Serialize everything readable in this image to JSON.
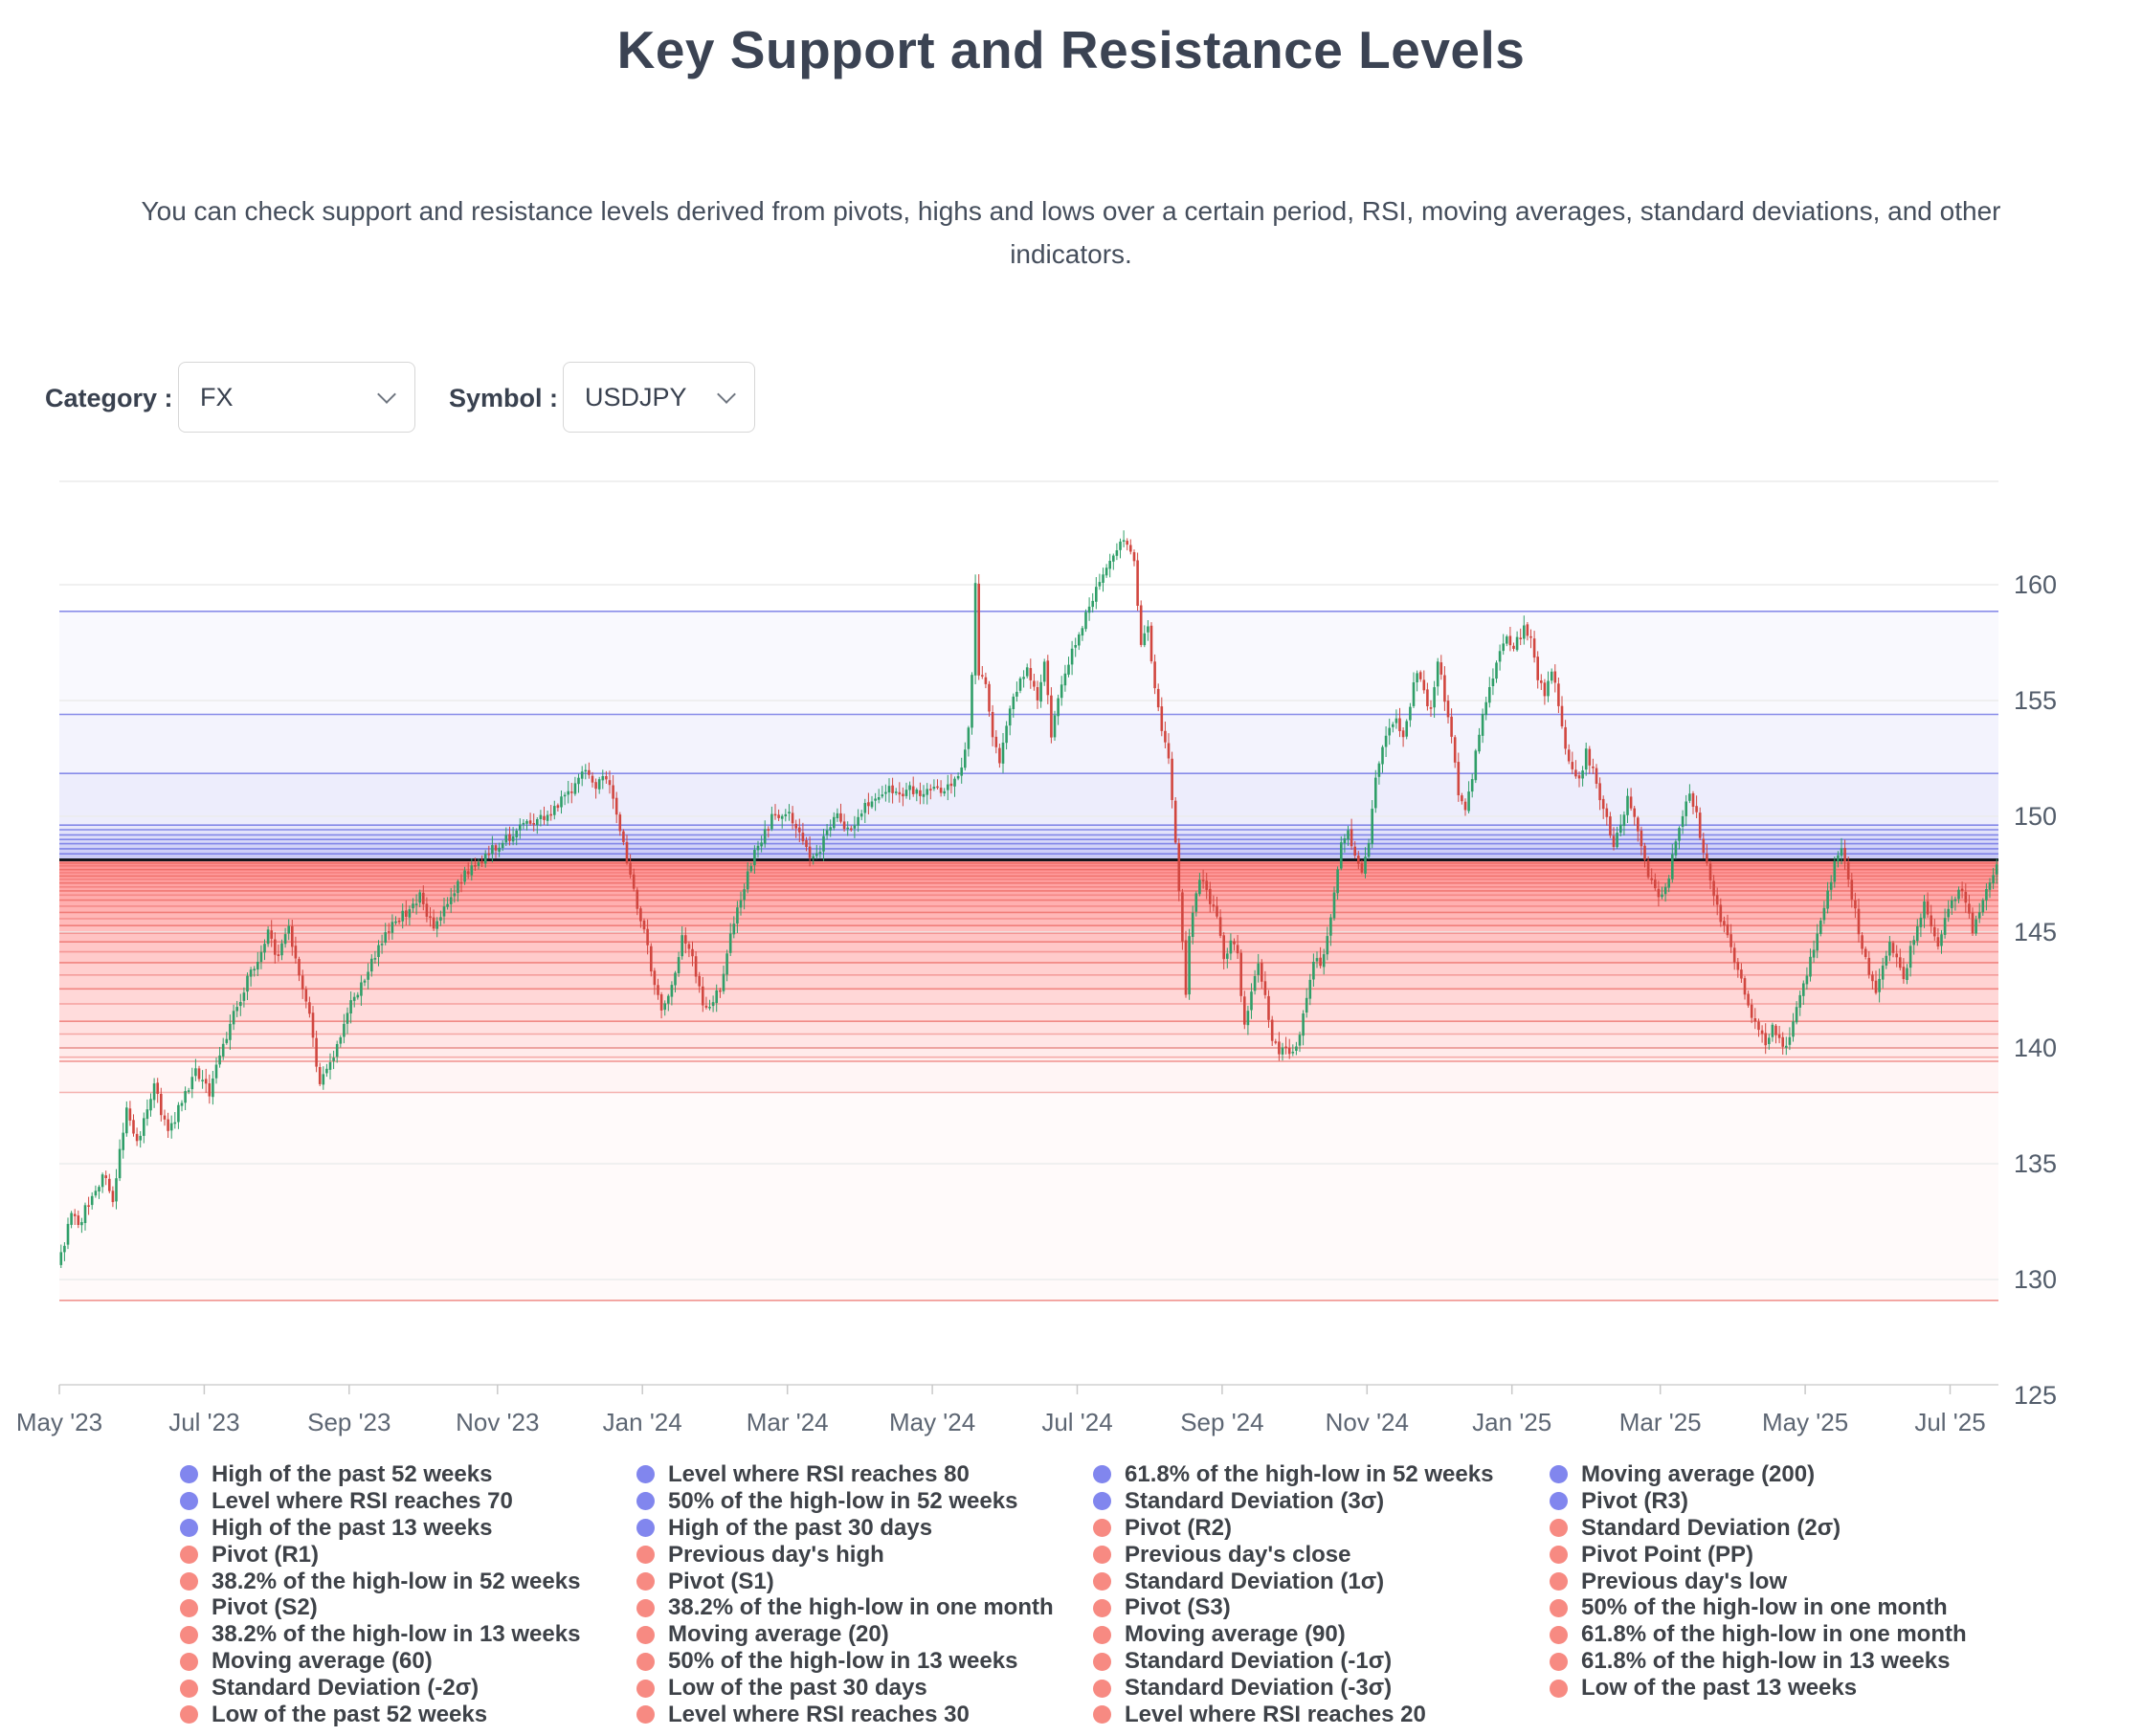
{
  "page": {
    "title": "Key Support and Resistance Levels",
    "description_lines": [
      "You can check support and resistance levels derived from pivots, highs and lows over a certain period, RSI, moving averages, standard deviations, and other",
      "indicators."
    ]
  },
  "controls": {
    "category_label": "Category :",
    "category_value": "FX",
    "symbol_label": "Symbol :",
    "symbol_value": "USDJPY",
    "dropdown_icon": "chevron-down-icon"
  },
  "chart_data": {
    "type": "candlestick",
    "symbol": "USDJPY",
    "x_axis": {
      "labels": [
        "May '23",
        "Jul '23",
        "Sep '23",
        "Nov '23",
        "Jan '24",
        "Mar '24",
        "May '24",
        "Jul '24",
        "Sep '24",
        "Nov '24",
        "Jan '25",
        "Mar '25",
        "May '25",
        "Jul '25"
      ],
      "tick_days": [
        0,
        42,
        84,
        127,
        169,
        211,
        253,
        295,
        337,
        379,
        421,
        464,
        506,
        548
      ],
      "total_days": 562
    },
    "y_axis": {
      "ticks": [
        160,
        155,
        150,
        145,
        140,
        135,
        130,
        125
      ],
      "range_top": 164.6,
      "range_bottom": 125.45,
      "grid": true,
      "position": "right"
    },
    "current_price": 148.12,
    "colors": {
      "up": "#2f9e68",
      "down": "#d1463f",
      "resistance_dot": "#8186ee",
      "support_dot": "#f78a82",
      "resistance_line": "#6c70e4",
      "support_line": "#e85c56",
      "band_blue": "#6e73eb",
      "band_red": "#f04646",
      "current_line": "#14161c",
      "grid_line": "#ececec",
      "axis_line": "#d0d0d0",
      "tick_text": "#5d6673"
    },
    "legend_layout": {
      "columns": 4,
      "order": "row-major"
    },
    "levels": [
      {
        "label": "High of the past 52 weeks",
        "price": 158.85,
        "side": "resistance"
      },
      {
        "label": "Level where RSI reaches 80",
        "price": 154.4,
        "side": "resistance"
      },
      {
        "label": "61.8% of the high-low in 52 weeks",
        "price": 151.85,
        "side": "resistance"
      },
      {
        "label": "Moving average (200)",
        "price": 149.62,
        "side": "resistance"
      },
      {
        "label": "Level where RSI reaches 70",
        "price": 149.42,
        "side": "resistance"
      },
      {
        "label": "50% of the high-low in 52 weeks",
        "price": 149.2,
        "side": "resistance"
      },
      {
        "label": "Standard Deviation (3σ)",
        "price": 149.0,
        "side": "resistance"
      },
      {
        "label": "Pivot (R3)",
        "price": 148.82,
        "side": "resistance"
      },
      {
        "label": "High of the past 13 weeks",
        "price": 148.6,
        "side": "resistance"
      },
      {
        "label": "High of the past 30 days",
        "price": 148.38,
        "side": "resistance"
      },
      {
        "label": "Pivot (R2)",
        "price": 147.98,
        "side": "support"
      },
      {
        "label": "Standard Deviation (2σ)",
        "price": 147.86,
        "side": "support"
      },
      {
        "label": "Pivot (R1)",
        "price": 147.7,
        "side": "support"
      },
      {
        "label": "Previous day's high",
        "price": 147.56,
        "side": "support"
      },
      {
        "label": "Previous day's close",
        "price": 147.42,
        "side": "support"
      },
      {
        "label": "Pivot Point (PP)",
        "price": 147.28,
        "side": "support"
      },
      {
        "label": "38.2% of the high-low in 52 weeks",
        "price": 147.12,
        "side": "support"
      },
      {
        "label": "Pivot (S1)",
        "price": 146.95,
        "side": "support"
      },
      {
        "label": "Standard Deviation (1σ)",
        "price": 146.78,
        "side": "support"
      },
      {
        "label": "Previous day's low",
        "price": 146.6,
        "side": "support"
      },
      {
        "label": "Pivot (S2)",
        "price": 146.38,
        "side": "support"
      },
      {
        "label": "38.2% of the high-low in one month",
        "price": 146.12,
        "side": "support"
      },
      {
        "label": "Pivot (S3)",
        "price": 145.85,
        "side": "support"
      },
      {
        "label": "50% of the high-low in one month",
        "price": 145.58,
        "side": "support"
      },
      {
        "label": "38.2% of the high-low in 13 weeks",
        "price": 145.28,
        "side": "support"
      },
      {
        "label": "Moving average (20)",
        "price": 144.95,
        "side": "support"
      },
      {
        "label": "Moving average (90)",
        "price": 144.58,
        "side": "support"
      },
      {
        "label": "61.8% of the high-low in one month",
        "price": 144.15,
        "side": "support"
      },
      {
        "label": "Moving average (60)",
        "price": 143.68,
        "side": "support"
      },
      {
        "label": "50% of the high-low in 13 weeks",
        "price": 143.15,
        "side": "support"
      },
      {
        "label": "Standard Deviation (-1σ)",
        "price": 142.55,
        "side": "support"
      },
      {
        "label": "61.8% of the high-low in 13 weeks",
        "price": 141.9,
        "side": "support"
      },
      {
        "label": "Standard Deviation (-2σ)",
        "price": 141.15,
        "side": "support"
      },
      {
        "label": "Low of the past 30 days",
        "price": 140.6,
        "side": "support"
      },
      {
        "label": "Standard Deviation (-3σ)",
        "price": 140.0,
        "side": "support"
      },
      {
        "label": "Low of the past 13 weeks",
        "price": 139.6,
        "side": "support"
      },
      {
        "label": "Low of the past 52 weeks",
        "price": 139.42,
        "side": "support"
      },
      {
        "label": "Level where RSI reaches 30",
        "price": 138.08,
        "side": "support"
      },
      {
        "label": "Level where RSI reaches 20",
        "price": 129.1,
        "side": "support"
      }
    ],
    "waypoints": [
      [
        0,
        131.0
      ],
      [
        3,
        132.9
      ],
      [
        5,
        132.3
      ],
      [
        9,
        133.8
      ],
      [
        13,
        134.6
      ],
      [
        15,
        133.4
      ],
      [
        19,
        137.6
      ],
      [
        22,
        135.9
      ],
      [
        27,
        138.3
      ],
      [
        31,
        136.3
      ],
      [
        35,
        137.7
      ],
      [
        39,
        139.0
      ],
      [
        43,
        138.1
      ],
      [
        49,
        141.0
      ],
      [
        55,
        143.3
      ],
      [
        60,
        144.9
      ],
      [
        63,
        143.9
      ],
      [
        66,
        145.2
      ],
      [
        69,
        143.2
      ],
      [
        72,
        141.3
      ],
      [
        75,
        138.4
      ],
      [
        79,
        139.7
      ],
      [
        84,
        141.9
      ],
      [
        89,
        143.4
      ],
      [
        94,
        145.0
      ],
      [
        99,
        145.7
      ],
      [
        104,
        146.5
      ],
      [
        108,
        145.2
      ],
      [
        112,
        146.2
      ],
      [
        117,
        147.6
      ],
      [
        122,
        148.1
      ],
      [
        126,
        148.7
      ],
      [
        130,
        149.1
      ],
      [
        135,
        149.7
      ],
      [
        140,
        150.0
      ],
      [
        144,
        150.5
      ],
      [
        148,
        151.2
      ],
      [
        152,
        151.9
      ],
      [
        155,
        151.4
      ],
      [
        158,
        151.8
      ],
      [
        161,
        150.2
      ],
      [
        164,
        148.2
      ],
      [
        167,
        146.2
      ],
      [
        170,
        144.4
      ],
      [
        172,
        142.5
      ],
      [
        174,
        141.7
      ],
      [
        177,
        142.6
      ],
      [
        180,
        144.7
      ],
      [
        183,
        143.9
      ],
      [
        186,
        142.0
      ],
      [
        188,
        141.6
      ],
      [
        191,
        142.6
      ],
      [
        194,
        144.8
      ],
      [
        198,
        147.0
      ],
      [
        202,
        148.8
      ],
      [
        206,
        149.9
      ],
      [
        210,
        150.3
      ],
      [
        213,
        149.5
      ],
      [
        216,
        148.5
      ],
      [
        219,
        148.2
      ],
      [
        222,
        149.3
      ],
      [
        225,
        150.1
      ],
      [
        228,
        149.4
      ],
      [
        231,
        150.0
      ],
      [
        234,
        150.6
      ],
      [
        237,
        150.9
      ],
      [
        240,
        151.1
      ],
      [
        243,
        150.8
      ],
      [
        246,
        151.2
      ],
      [
        249,
        151.0
      ],
      [
        252,
        151.3
      ],
      [
        255,
        151.0
      ],
      [
        258,
        151.4
      ],
      [
        261,
        152.0
      ],
      [
        263,
        153.8
      ],
      [
        264,
        156.3
      ],
      [
        265,
        160.2
      ],
      [
        266,
        156.3
      ],
      [
        268,
        155.9
      ],
      [
        270,
        153.4
      ],
      [
        272,
        152.2
      ],
      [
        274,
        154.1
      ],
      [
        277,
        155.5
      ],
      [
        280,
        156.4
      ],
      [
        283,
        155.2
      ],
      [
        285,
        156.8
      ],
      [
        287,
        153.5
      ],
      [
        289,
        155.0
      ],
      [
        291,
        156.2
      ],
      [
        293,
        157.3
      ],
      [
        295,
        157.8
      ],
      [
        297,
        158.6
      ],
      [
        299,
        159.4
      ],
      [
        301,
        160.3
      ],
      [
        303,
        160.9
      ],
      [
        305,
        161.4
      ],
      [
        307,
        161.8
      ],
      [
        309,
        161.9
      ],
      [
        311,
        160.9
      ],
      [
        313,
        157.6
      ],
      [
        315,
        158.1
      ],
      [
        317,
        155.5
      ],
      [
        319,
        153.9
      ],
      [
        321,
        152.4
      ],
      [
        322,
        150.5
      ],
      [
        323,
        148.9
      ],
      [
        324,
        146.6
      ],
      [
        325,
        144.5
      ],
      [
        326,
        142.2
      ],
      [
        327,
        144.9
      ],
      [
        329,
        146.9
      ],
      [
        331,
        147.3
      ],
      [
        333,
        146.4
      ],
      [
        335,
        145.5
      ],
      [
        337,
        143.8
      ],
      [
        339,
        144.6
      ],
      [
        341,
        144.0
      ],
      [
        343,
        140.8
      ],
      [
        345,
        142.4
      ],
      [
        347,
        143.5
      ],
      [
        349,
        142.3
      ],
      [
        351,
        140.5
      ],
      [
        353,
        139.8
      ],
      [
        355,
        140.0
      ],
      [
        357,
        139.8
      ],
      [
        359,
        140.7
      ],
      [
        361,
        142.3
      ],
      [
        363,
        143.8
      ],
      [
        365,
        143.7
      ],
      [
        367,
        144.7
      ],
      [
        369,
        146.8
      ],
      [
        371,
        148.7
      ],
      [
        373,
        149.4
      ],
      [
        375,
        148.4
      ],
      [
        377,
        147.4
      ],
      [
        379,
        148.8
      ],
      [
        381,
        151.6
      ],
      [
        383,
        153.0
      ],
      [
        385,
        153.8
      ],
      [
        387,
        154.3
      ],
      [
        389,
        153.4
      ],
      [
        391,
        154.9
      ],
      [
        393,
        156.4
      ],
      [
        395,
        155.3
      ],
      [
        397,
        154.6
      ],
      [
        399,
        156.8
      ],
      [
        401,
        155.1
      ],
      [
        403,
        153.5
      ],
      [
        405,
        151.1
      ],
      [
        407,
        150.2
      ],
      [
        409,
        151.7
      ],
      [
        411,
        153.7
      ],
      [
        413,
        154.9
      ],
      [
        415,
        156.1
      ],
      [
        417,
        157.3
      ],
      [
        419,
        157.9
      ],
      [
        421,
        157.2
      ],
      [
        424,
        158.2
      ],
      [
        426,
        157.7
      ],
      [
        428,
        156.1
      ],
      [
        430,
        155.4
      ],
      [
        432,
        156.3
      ],
      [
        434,
        154.9
      ],
      [
        436,
        153.1
      ],
      [
        438,
        152.1
      ],
      [
        440,
        151.6
      ],
      [
        442,
        152.8
      ],
      [
        444,
        152.0
      ],
      [
        446,
        150.6
      ],
      [
        448,
        149.8
      ],
      [
        450,
        148.8
      ],
      [
        452,
        149.6
      ],
      [
        454,
        150.7
      ],
      [
        456,
        150.1
      ],
      [
        458,
        148.9
      ],
      [
        460,
        147.5
      ],
      [
        462,
        146.9
      ],
      [
        464,
        146.5
      ],
      [
        466,
        147.5
      ],
      [
        468,
        148.9
      ],
      [
        470,
        150.2
      ],
      [
        472,
        150.8
      ],
      [
        474,
        150.0
      ],
      [
        476,
        148.5
      ],
      [
        478,
        147.2
      ],
      [
        480,
        146.1
      ],
      [
        482,
        145.2
      ],
      [
        484,
        144.2
      ],
      [
        486,
        143.2
      ],
      [
        488,
        142.4
      ],
      [
        490,
        141.5
      ],
      [
        492,
        140.7
      ],
      [
        494,
        140.1
      ],
      [
        496,
        141.0
      ],
      [
        498,
        140.3
      ],
      [
        500,
        139.9
      ],
      [
        502,
        141.0
      ],
      [
        504,
        142.2
      ],
      [
        506,
        143.2
      ],
      [
        508,
        144.4
      ],
      [
        510,
        145.5
      ],
      [
        512,
        146.7
      ],
      [
        514,
        147.9
      ],
      [
        516,
        148.5
      ],
      [
        518,
        147.3
      ],
      [
        520,
        145.8
      ],
      [
        522,
        144.4
      ],
      [
        524,
        143.2
      ],
      [
        526,
        142.3
      ],
      [
        528,
        143.6
      ],
      [
        530,
        144.6
      ],
      [
        532,
        143.9
      ],
      [
        534,
        143.1
      ],
      [
        536,
        144.2
      ],
      [
        538,
        145.3
      ],
      [
        540,
        146.2
      ],
      [
        542,
        145.4
      ],
      [
        544,
        144.6
      ],
      [
        546,
        145.4
      ],
      [
        548,
        146.3
      ],
      [
        550,
        147.0
      ],
      [
        552,
        146.2
      ],
      [
        554,
        145.0
      ],
      [
        556,
        145.8
      ],
      [
        558,
        146.8
      ],
      [
        560,
        147.5
      ],
      [
        561,
        147.9
      ]
    ]
  }
}
